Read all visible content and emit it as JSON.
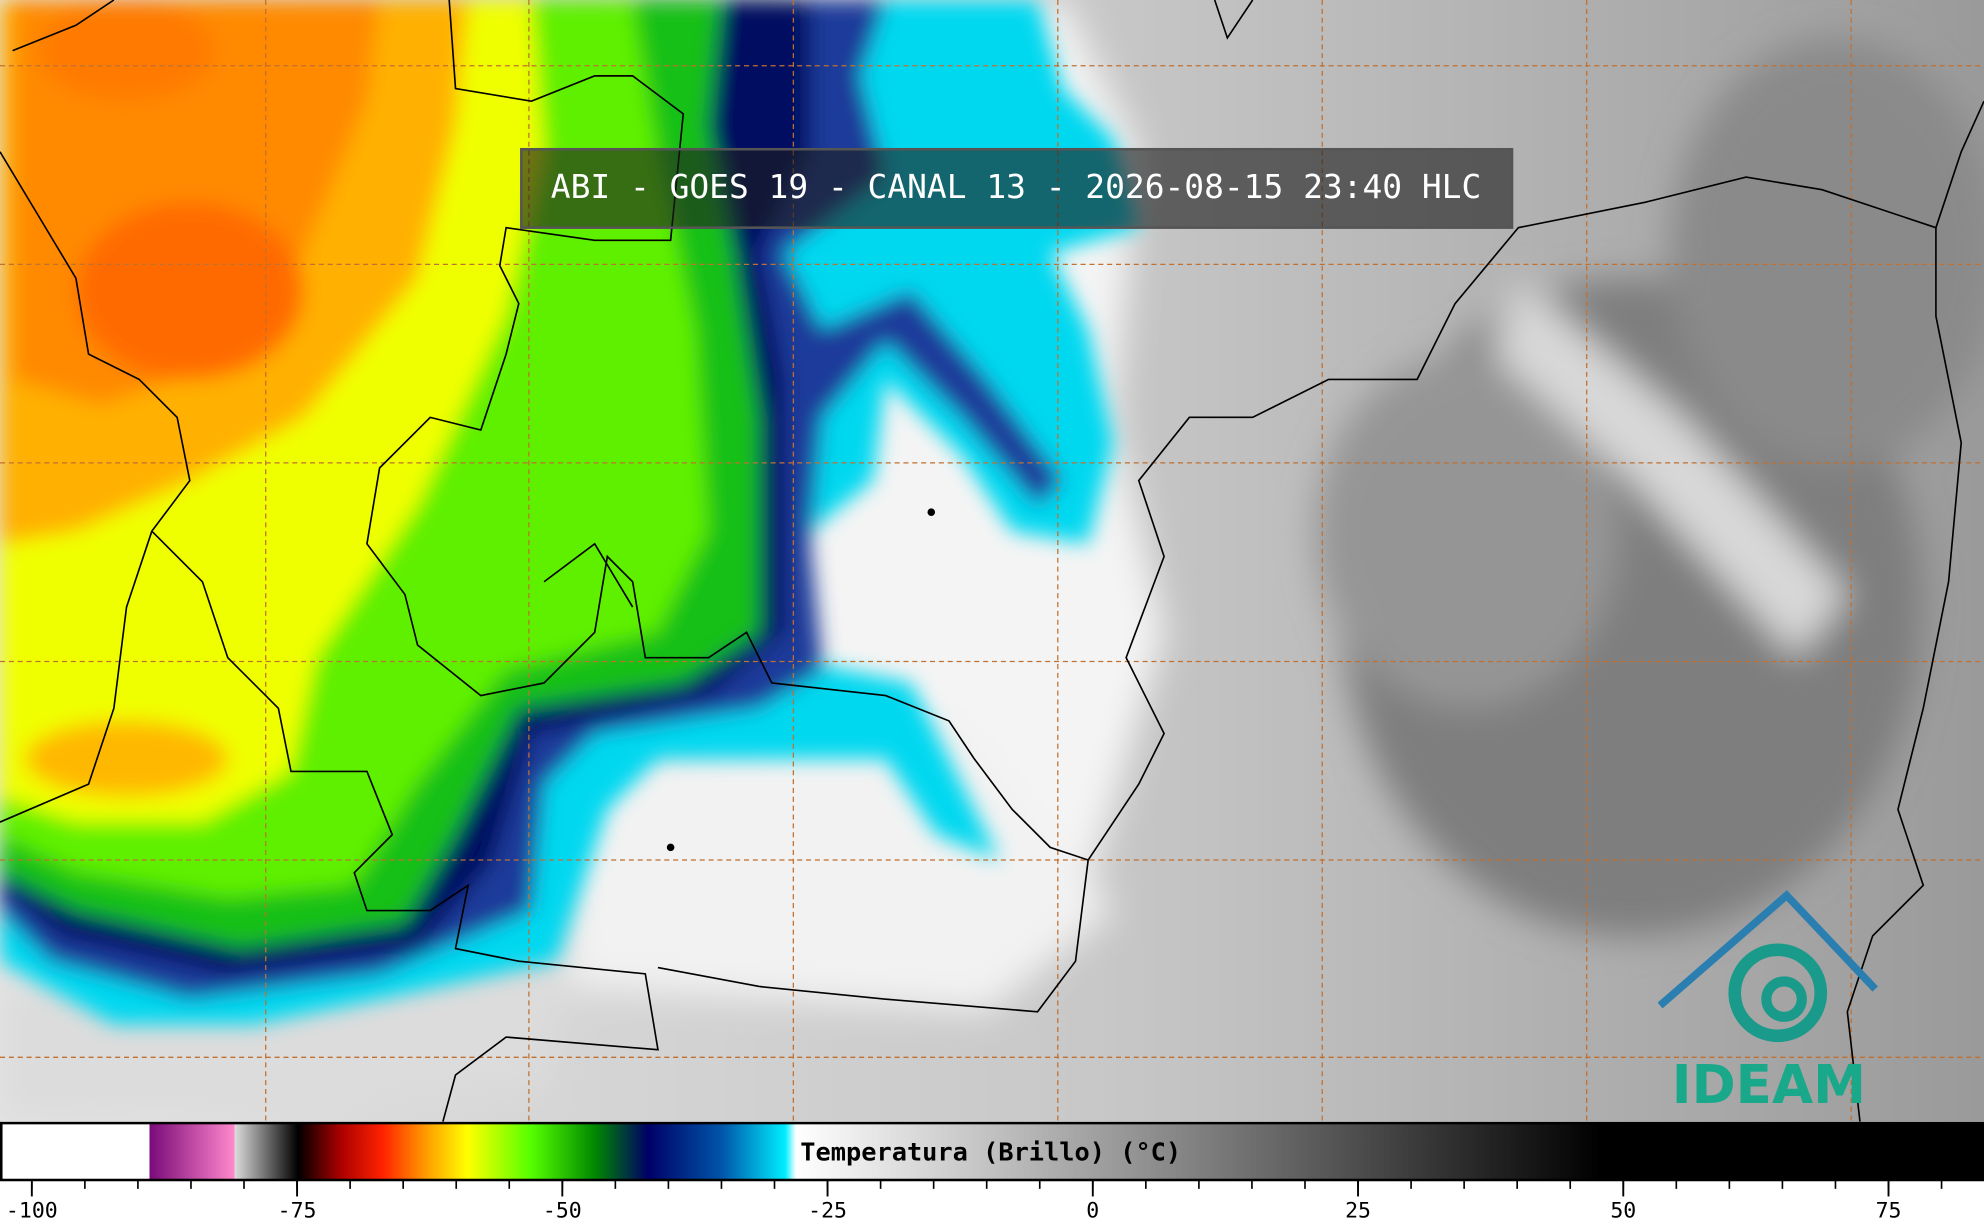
{
  "title": "ABI - GOES 19 - CANAL 13 - 2026-08-15 23:40 HLC",
  "logo": "IDEAM",
  "colorbar": {
    "label": "Temperatura (Brillo) (°C)",
    "lim": [
      -103,
      84
    ],
    "ticks": [
      -100,
      -75,
      -50,
      -25,
      0,
      25,
      50,
      75
    ],
    "minor_tick_step": 5,
    "colormap": [
      {
        "value": -103,
        "color": "#ffffff"
      },
      {
        "value": -89,
        "color": "#ffffff"
      },
      {
        "value": -89,
        "color": "#7a0a7a"
      },
      {
        "value": -81,
        "color": "#ff88cc"
      },
      {
        "value": -81,
        "color": "#dddddd"
      },
      {
        "value": -75,
        "color": "#000000"
      },
      {
        "value": -71,
        "color": "#aa0000"
      },
      {
        "value": -67,
        "color": "#ff2200"
      },
      {
        "value": -63,
        "color": "#ff9900"
      },
      {
        "value": -59,
        "color": "#ffff00"
      },
      {
        "value": -53,
        "color": "#55ff00"
      },
      {
        "value": -47,
        "color": "#008800"
      },
      {
        "value": -42,
        "color": "#000066"
      },
      {
        "value": -35,
        "color": "#0055aa"
      },
      {
        "value": -29,
        "color": "#00eeff"
      },
      {
        "value": -28,
        "color": "#ffffff"
      },
      {
        "value": 48,
        "color": "#000000"
      },
      {
        "value": 84,
        "color": "#000000"
      }
    ]
  }
}
